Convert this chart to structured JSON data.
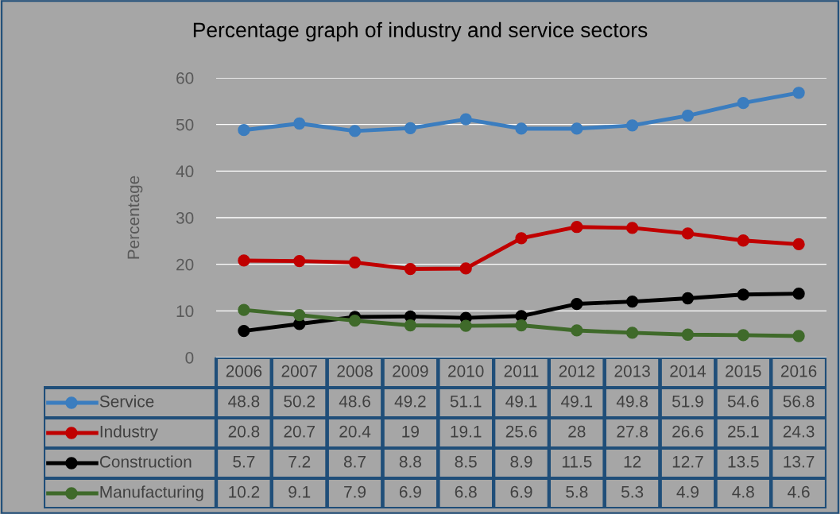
{
  "chart_data": {
    "type": "line",
    "title": "Percentage graph of industry and service sectors",
    "ylabel": "Percentage",
    "categories": [
      "2006",
      "2007",
      "2008",
      "2009",
      "2010",
      "2011",
      "2012",
      "2013",
      "2014",
      "2015",
      "2016"
    ],
    "series": [
      {
        "name": "Service",
        "color": "#3b7dbf",
        "values": [
          48.8,
          50.2,
          48.6,
          49.2,
          51.1,
          49.1,
          49.1,
          49.8,
          51.9,
          54.6,
          56.8
        ]
      },
      {
        "name": "Industry",
        "color": "#c00000",
        "values": [
          20.8,
          20.7,
          20.4,
          19,
          19.1,
          25.6,
          28,
          27.8,
          26.6,
          25.1,
          24.3
        ]
      },
      {
        "name": "Construction",
        "color": "#000000",
        "values": [
          5.7,
          7.2,
          8.7,
          8.8,
          8.5,
          8.9,
          11.5,
          12,
          12.7,
          13.5,
          13.7
        ]
      },
      {
        "name": "Manufacturing",
        "color": "#3f6a2a",
        "values": [
          10.2,
          9.1,
          7.9,
          6.9,
          6.8,
          6.9,
          5.8,
          5.3,
          4.9,
          4.8,
          4.6
        ]
      }
    ],
    "ylim": [
      0,
      60
    ],
    "yticks": [
      0,
      10,
      20,
      30,
      40,
      50,
      60
    ],
    "grid": "y",
    "tick_labels": "y",
    "marker": "circle",
    "line_style": "solid",
    "legend": "bottom",
    "data_labels": true
  }
}
